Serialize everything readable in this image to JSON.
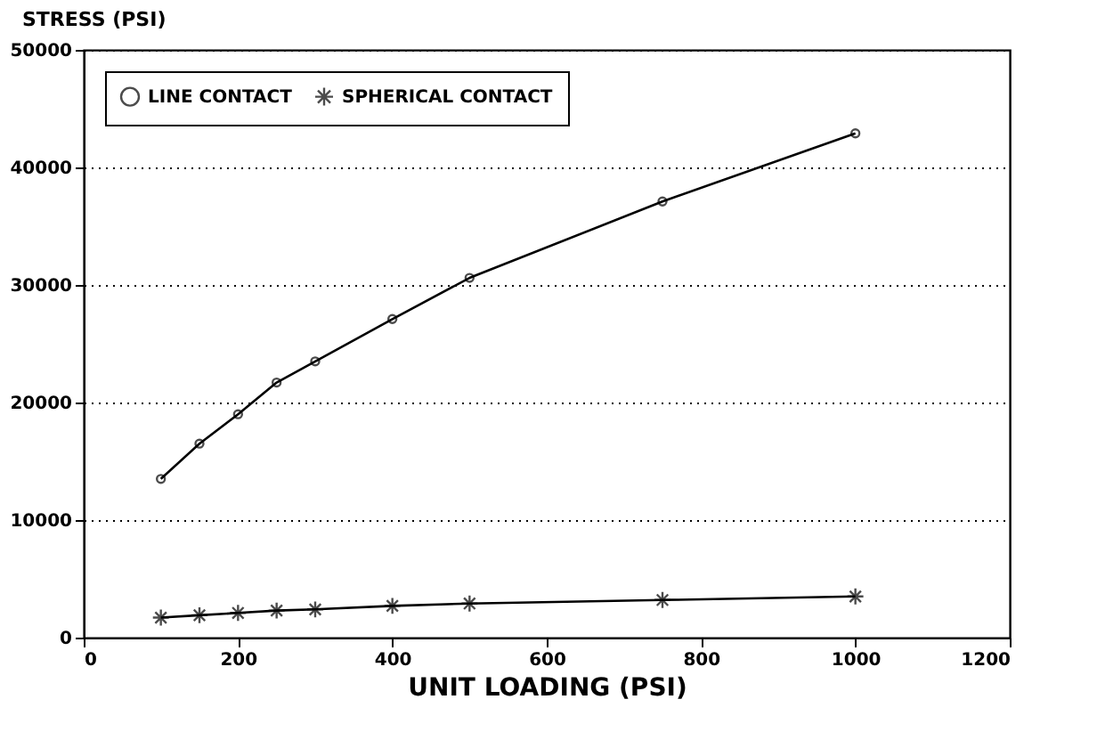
{
  "chart_data": {
    "type": "line",
    "xlabel": "UNIT LOADING (PSI)",
    "ylabel": "STRESS (PSI)",
    "x": [
      100,
      150,
      200,
      250,
      300,
      400,
      500,
      750,
      1000
    ],
    "series": [
      {
        "name": "LINE CONTACT",
        "color": "#000000",
        "marker": "circle",
        "values": [
          13500,
          16500,
          19000,
          21700,
          23500,
          27100,
          30600,
          37100,
          42900
        ]
      },
      {
        "name": "SPHERICAL CONTACT",
        "color": "#000000",
        "marker": "cross",
        "values": [
          1700,
          1900,
          2100,
          2300,
          2400,
          2700,
          2900,
          3200,
          3500
        ]
      }
    ],
    "xlim": [
      0,
      1200
    ],
    "xticks": [
      0,
      200,
      400,
      600,
      800,
      1000,
      1200
    ],
    "ylim": [
      0,
      50000
    ],
    "yticks": [
      0,
      10000,
      20000,
      30000,
      40000,
      50000
    ],
    "grid": "y",
    "legend": "top left",
    "line_style": "solid"
  }
}
